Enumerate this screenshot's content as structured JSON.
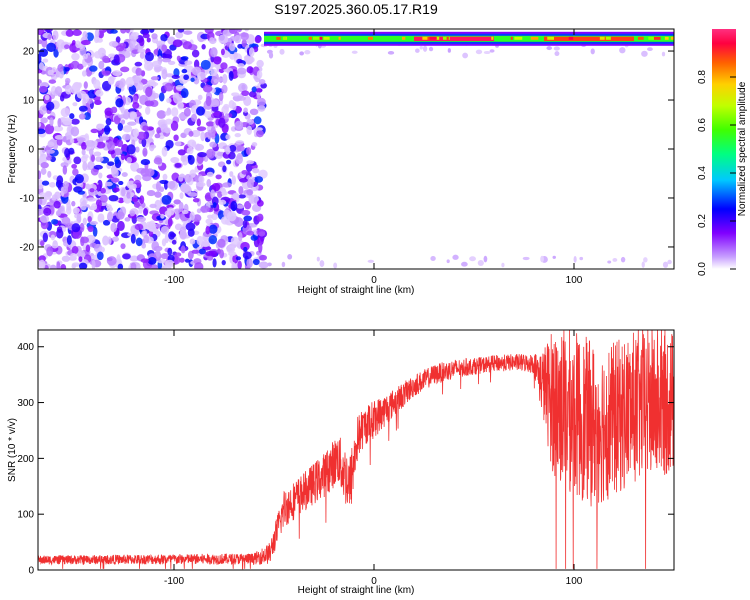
{
  "title": "S197.2025.360.05.17.R19",
  "chart_data": [
    {
      "type": "heatmap",
      "xlabel": "Height of straight line (km)",
      "ylabel": "Frequency (Hz)",
      "xlim": [
        -168,
        150
      ],
      "ylim": [
        -24.5,
        24.5
      ],
      "xticks": [
        -100,
        0,
        100
      ],
      "yticks": [
        -20,
        -10,
        0,
        10,
        20
      ],
      "colorbar": {
        "label": "Normalized spectral amplitude",
        "range": [
          0,
          1
        ],
        "ticks": [
          0.0,
          0.2,
          0.4,
          0.6,
          0.8
        ],
        "colors": [
          "#ffffff",
          "#c8a0ff",
          "#8000ff",
          "#0000ff",
          "#00c8ff",
          "#00ff80",
          "#40ff00",
          "#c0ff00",
          "#ffd000",
          "#ff6000",
          "#ff0040",
          "#ff3080"
        ]
      },
      "regions": [
        {
          "name": "noise",
          "x": [
            -168,
            -55
          ],
          "freq": [
            -24.5,
            24.5
          ],
          "amplitude": [
            0.05,
            0.3
          ]
        },
        {
          "name": "carrier",
          "x": [
            -55,
            150
          ],
          "freq": 22.5,
          "amplitude_peak": 0.95
        }
      ],
      "carrier_hot_segments": [
        {
          "x": [
            20,
            60
          ],
          "amplitude": 0.95
        },
        {
          "x": [
            85,
            130
          ],
          "amplitude": 0.85
        }
      ]
    },
    {
      "type": "line",
      "xlabel": "Height of straight line (km)",
      "ylabel": "SNR (10 * v/v)",
      "xlim": [
        -168,
        150
      ],
      "ylim": [
        0,
        430
      ],
      "xticks": [
        -100,
        0,
        100
      ],
      "yticks": [
        0,
        100,
        200,
        300,
        400
      ],
      "color": "#f03030",
      "envelope": {
        "x": [
          -168,
          -60,
          -52,
          -45,
          -35,
          -25,
          -18,
          -12,
          -8,
          -4,
          0,
          10,
          20,
          30,
          40,
          50,
          60,
          70,
          80,
          85,
          90,
          100,
          110,
          120,
          130,
          140,
          150
        ],
        "mean": [
          18,
          20,
          30,
          110,
          140,
          170,
          200,
          150,
          240,
          260,
          270,
          300,
          330,
          350,
          360,
          365,
          370,
          372,
          370,
          330,
          300,
          280,
          260,
          270,
          290,
          300,
          300
        ],
        "spread": [
          8,
          10,
          20,
          35,
          35,
          40,
          45,
          60,
          40,
          35,
          35,
          25,
          20,
          18,
          18,
          15,
          15,
          15,
          18,
          70,
          140,
          150,
          150,
          140,
          140,
          140,
          130
        ]
      }
    }
  ]
}
